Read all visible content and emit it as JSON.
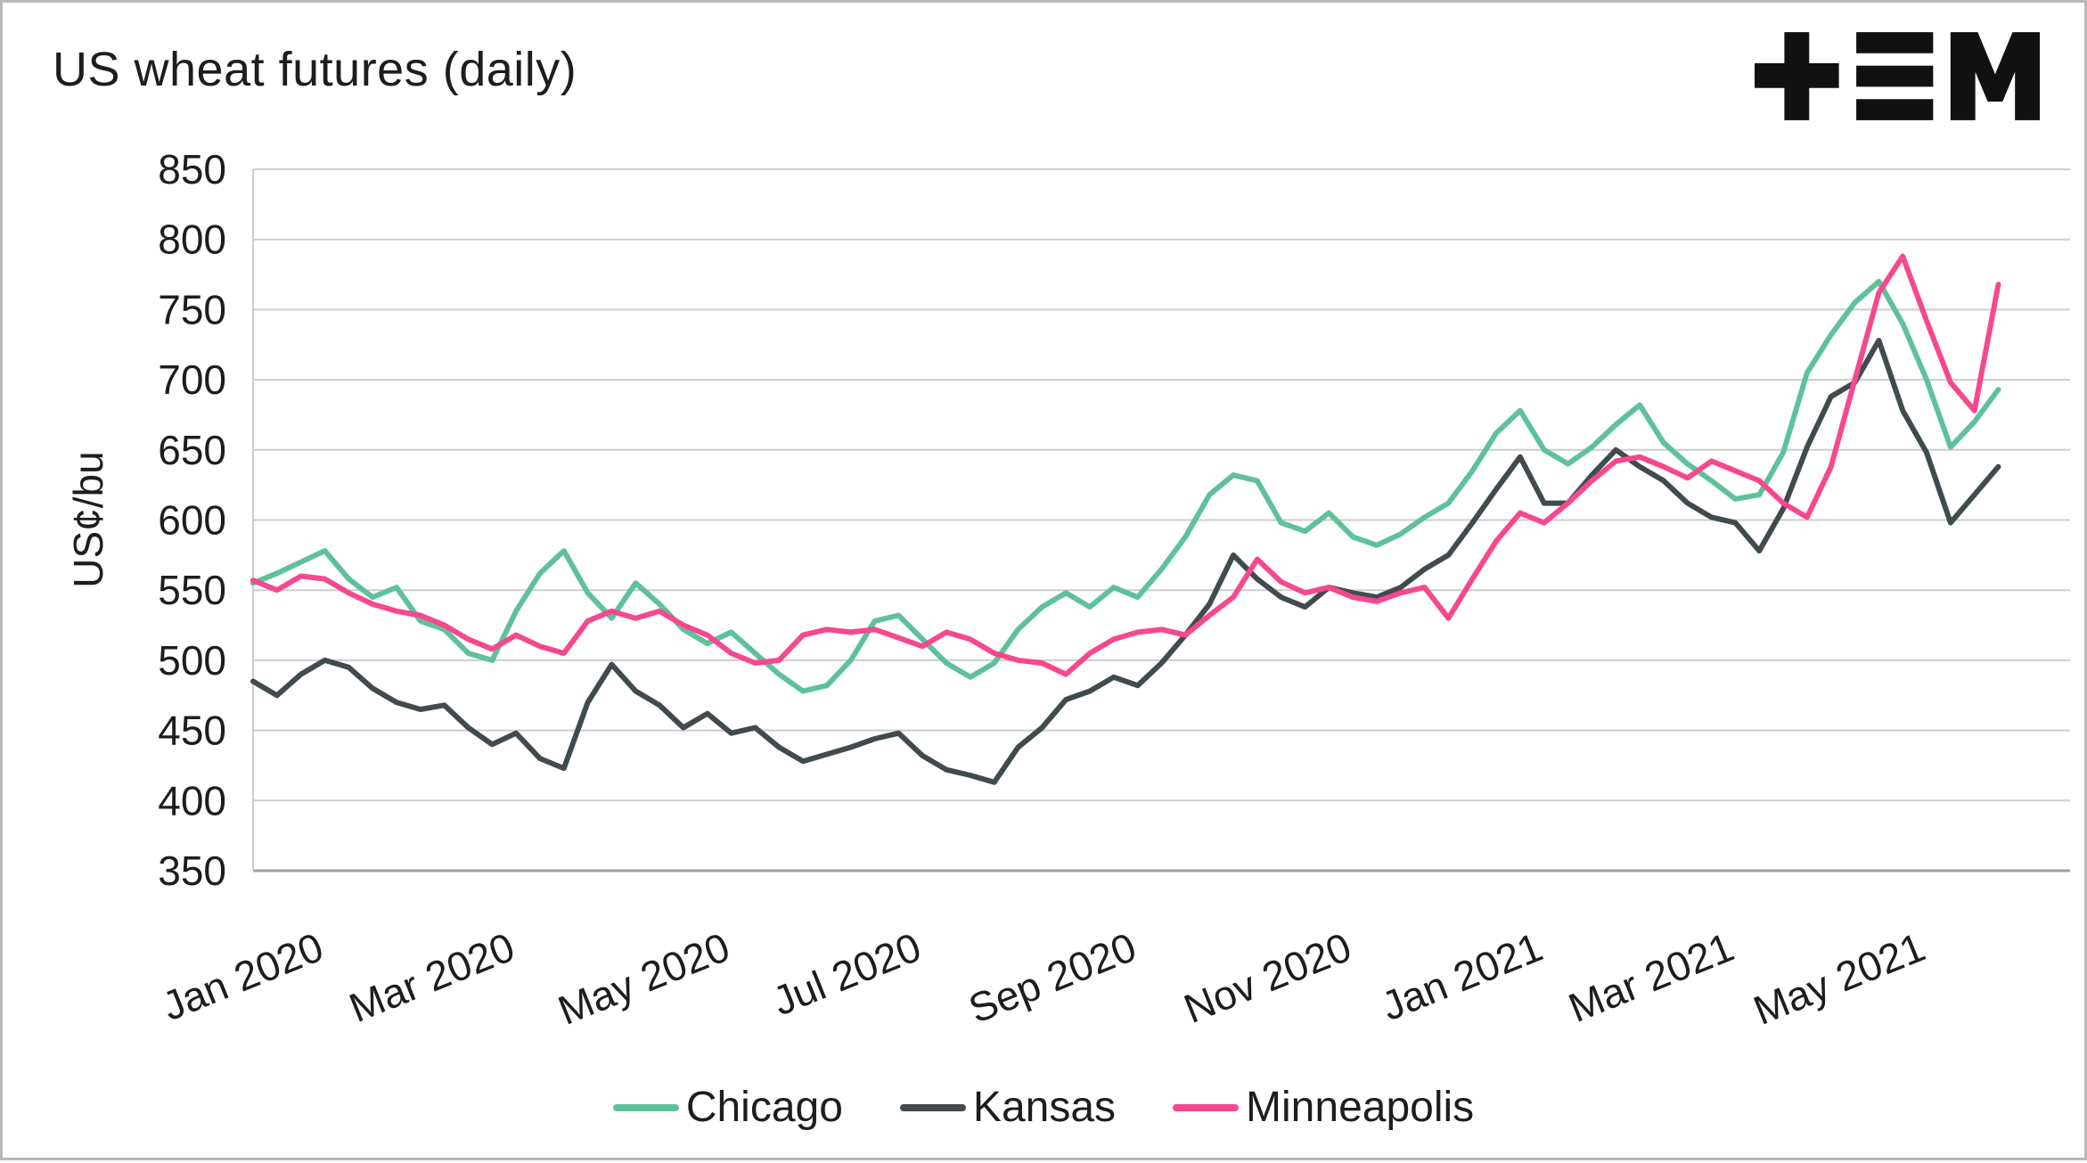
{
  "header": {
    "title": "US wheat futures (daily)"
  },
  "logo": {
    "name": "tem-logo",
    "color": "#111111"
  },
  "chart_data": {
    "type": "line",
    "title": "US wheat futures (daily)",
    "xlabel": "",
    "ylabel": "US¢/bu",
    "ylim": [
      350,
      850
    ],
    "yticks": [
      350,
      400,
      450,
      500,
      550,
      600,
      650,
      700,
      750,
      800,
      850
    ],
    "grid": "horizontal",
    "legend_position": "bottom",
    "x_unit": "week_index_from_jan_2020",
    "xlim": [
      0,
      76
    ],
    "xticks": [
      {
        "pos": 0,
        "label": "Jan 2020"
      },
      {
        "pos": 8,
        "label": "Mar 2020"
      },
      {
        "pos": 17,
        "label": "May 2020"
      },
      {
        "pos": 25,
        "label": "Jul 2020"
      },
      {
        "pos": 34,
        "label": "Sep 2020"
      },
      {
        "pos": 43,
        "label": "Nov 2020"
      },
      {
        "pos": 51,
        "label": "Jan 2021"
      },
      {
        "pos": 59,
        "label": "Mar 2021"
      },
      {
        "pos": 67,
        "label": "May 2021"
      }
    ],
    "series": [
      {
        "name": "Chicago",
        "color": "#5fc19b",
        "values": [
          555,
          562,
          570,
          578,
          558,
          545,
          552,
          528,
          522,
          505,
          500,
          535,
          562,
          578,
          548,
          530,
          555,
          540,
          522,
          512,
          520,
          505,
          490,
          478,
          482,
          500,
          528,
          532,
          515,
          498,
          488,
          498,
          522,
          538,
          548,
          538,
          552,
          545,
          565,
          588,
          618,
          632,
          628,
          598,
          592,
          605,
          588,
          582,
          590,
          602,
          612,
          635,
          662,
          678,
          650,
          640,
          652,
          668,
          682,
          655,
          640,
          628,
          615,
          618,
          648,
          705,
          732,
          755,
          770,
          740,
          700,
          652,
          670,
          693
        ]
      },
      {
        "name": "Kansas",
        "color": "#414b4e",
        "values": [
          485,
          475,
          490,
          500,
          495,
          480,
          470,
          465,
          468,
          452,
          440,
          448,
          430,
          423,
          470,
          497,
          478,
          468,
          452,
          462,
          448,
          452,
          438,
          428,
          433,
          438,
          444,
          448,
          432,
          422,
          418,
          413,
          438,
          452,
          472,
          478,
          488,
          482,
          498,
          518,
          540,
          575,
          558,
          545,
          538,
          552,
          548,
          545,
          552,
          565,
          575,
          598,
          622,
          645,
          612,
          612,
          632,
          650,
          638,
          628,
          612,
          602,
          598,
          578,
          608,
          652,
          688,
          698,
          728,
          678,
          648,
          598,
          618,
          638
        ]
      },
      {
        "name": "Minneapolis",
        "color": "#f5488f",
        "values": [
          557,
          550,
          560,
          558,
          548,
          540,
          535,
          532,
          525,
          515,
          508,
          518,
          510,
          505,
          528,
          535,
          530,
          535,
          525,
          518,
          505,
          498,
          500,
          518,
          522,
          520,
          522,
          516,
          510,
          520,
          515,
          505,
          500,
          498,
          490,
          505,
          515,
          520,
          522,
          518,
          532,
          545,
          572,
          556,
          548,
          552,
          545,
          542,
          548,
          552,
          530,
          558,
          585,
          605,
          598,
          612,
          628,
          642,
          645,
          638,
          630,
          642,
          635,
          628,
          612,
          602,
          638,
          700,
          762,
          788,
          742,
          698,
          678,
          768
        ]
      }
    ]
  }
}
